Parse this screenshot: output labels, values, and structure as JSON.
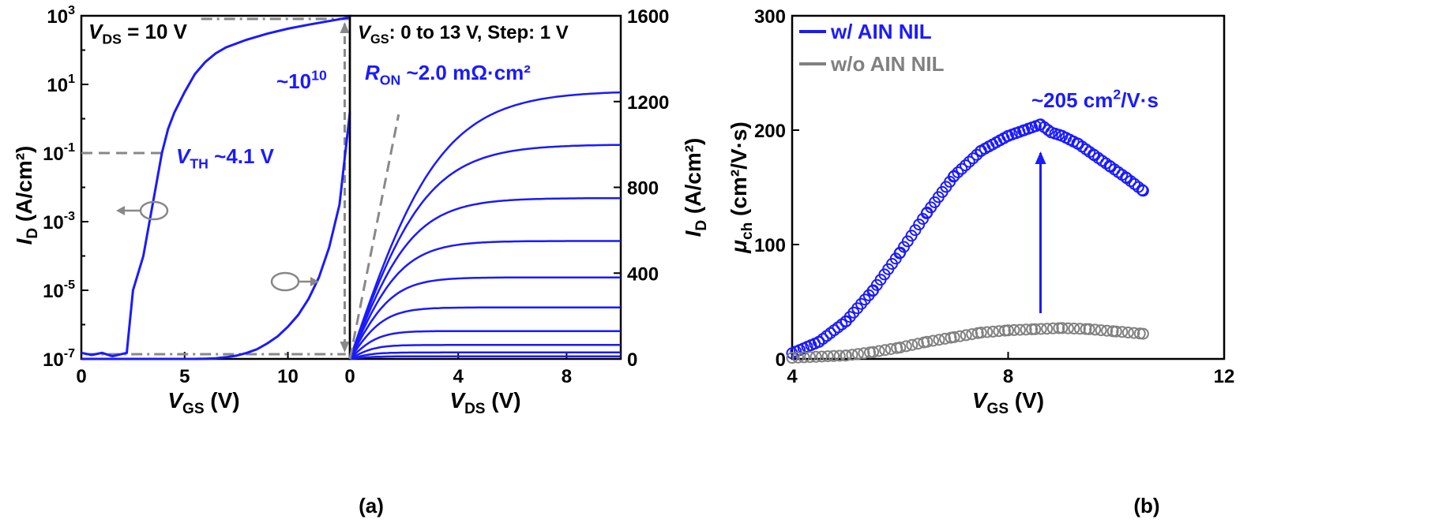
{
  "figure": {
    "panel_a_label": "(a)",
    "panel_b_label": "(b)"
  },
  "chart_data": [
    {
      "id": "transfer",
      "type": "line",
      "xlabel": "V_GS (V)",
      "ylabel_left": "I_D (A/cm²)",
      "y_scale": "log",
      "xlim": [
        0,
        13
      ],
      "ylim": [
        1e-07,
        1000
      ],
      "x_ticks": [
        "0",
        "5",
        "10"
      ],
      "y_ticks": [
        {
          "base": "10",
          "exp": "3"
        },
        {
          "base": "10",
          "exp": "1"
        },
        {
          "base": "10",
          "exp": "-1"
        },
        {
          "base": "10",
          "exp": "-3"
        },
        {
          "base": "10",
          "exp": "-5"
        },
        {
          "base": "10",
          "exp": "-7"
        }
      ],
      "annotations": {
        "vds": "V_DS = 10 V",
        "vth": "V_TH ~4.1 V",
        "on_off": "~10^10"
      },
      "series": [
        {
          "scale": "log",
          "color": "#1a1aff",
          "x": [
            0,
            0.5,
            1,
            1.5,
            2,
            2.2,
            2.5,
            3,
            3.3,
            3.6,
            3.9,
            4.2,
            4.5,
            5,
            5.5,
            6,
            6.5,
            7,
            8,
            9,
            10,
            11,
            12,
            13
          ],
          "y": [
            1.5e-07,
            1.3e-07,
            1.5e-07,
            1.2e-07,
            1.4e-07,
            1.5e-07,
            1e-05,
            0.0001,
            0.001,
            0.01,
            0.1,
            0.5,
            1.5,
            6,
            20,
            45,
            80,
            120,
            200,
            300,
            420,
            550,
            700,
            900
          ]
        },
        {
          "scale": "linear",
          "color": "#1a1aff",
          "x": [
            0,
            5.5,
            6,
            6.5,
            7,
            7.5,
            8,
            8.5,
            9,
            9.5,
            10,
            10.5,
            11,
            11.5,
            12,
            12.5,
            13
          ],
          "y": [
            0,
            0,
            1,
            3,
            8,
            15,
            28,
            45,
            72,
            105,
            150,
            205,
            280,
            380,
            520,
            720,
            1150
          ]
        }
      ]
    },
    {
      "id": "output",
      "type": "line",
      "xlabel": "V_DS (V)",
      "ylabel_right": "I_D (A/cm²)",
      "xlim": [
        0,
        10
      ],
      "ylim": [
        0,
        1600
      ],
      "x_ticks": [
        "0",
        "4",
        "8"
      ],
      "y_ticks": [
        "0",
        "400",
        "800",
        "1200",
        "1600"
      ],
      "annotations": {
        "vgs": "V_GS: 0 to 13 V, Step: 1 V",
        "ron": "R_ON ~2.0 mΩ·cm²"
      },
      "saturation_currents": [
        1250,
        1000,
        750,
        550,
        380,
        240,
        130,
        65,
        30,
        12
      ],
      "ron_line": {
        "x": [
          0,
          1.8
        ],
        "y": [
          0,
          1140
        ]
      }
    },
    {
      "id": "mobility",
      "type": "scatter",
      "xlabel": "V_GS (V)",
      "ylabel": "μ_ch (cm²/V·s)",
      "xlim": [
        4,
        12
      ],
      "ylim": [
        0,
        300
      ],
      "x_ticks": [
        "4",
        "8",
        "12"
      ],
      "y_ticks": [
        "0",
        "100",
        "200",
        "300"
      ],
      "peak_label": "~205 cm²/V·s",
      "series": [
        {
          "name": "w/ AIN NIL",
          "color": "#1a1aff",
          "x": [
            4.0,
            4.5,
            5.0,
            5.5,
            6.0,
            6.5,
            7.0,
            7.5,
            8.0,
            8.3,
            8.6,
            8.8,
            9.0,
            9.3,
            9.6,
            9.9,
            10.2,
            10.5
          ],
          "y": [
            5,
            15,
            33,
            60,
            93,
            128,
            160,
            182,
            195,
            200,
            205,
            198,
            195,
            188,
            178,
            168,
            158,
            147
          ]
        },
        {
          "name": "w/o AIN NIL",
          "color": "#808080",
          "x": [
            4.0,
            5.0,
            5.5,
            6.0,
            6.5,
            7.0,
            7.5,
            8.0,
            8.5,
            9.0,
            9.5,
            10.0,
            10.5
          ],
          "y": [
            1,
            3,
            6,
            10,
            15,
            19,
            23,
            25,
            26,
            27,
            26,
            24,
            22
          ]
        }
      ]
    }
  ]
}
